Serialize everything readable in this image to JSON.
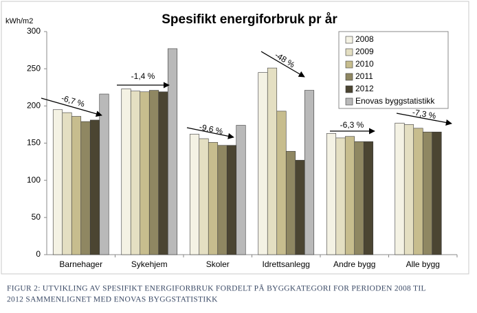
{
  "chart_data": {
    "type": "bar",
    "title": "Spesifikt energiforbruk pr år",
    "y_label": "kWh/m2",
    "categories": [
      "Barnehager",
      "Sykehjem",
      "Skoler",
      "Idrettsanlegg",
      "Andre bygg",
      "Alle bygg"
    ],
    "series": [
      {
        "name": "2008",
        "color": "#f4f2e4",
        "values": [
          195,
          223,
          162,
          245,
          163,
          177
        ]
      },
      {
        "name": "2009",
        "color": "#e4dfc2",
        "values": [
          191,
          220,
          156,
          251,
          157,
          175
        ]
      },
      {
        "name": "2010",
        "color": "#c7bd8e",
        "values": [
          186,
          219,
          151,
          193,
          159,
          170
        ]
      },
      {
        "name": "2011",
        "color": "#8f8762",
        "values": [
          179,
          221,
          147,
          139,
          152,
          165
        ]
      },
      {
        "name": "2012",
        "color": "#4b4532",
        "values": [
          181,
          219,
          147,
          127,
          152,
          165
        ]
      },
      {
        "name": "Enovas byggstatistikk",
        "color": "#b9b9b9",
        "values": [
          216,
          277,
          174,
          221,
          null,
          null
        ]
      }
    ],
    "annotations": [
      "-6,7 %",
      "-1,4 %",
      "-9,6 %",
      "-48 %",
      "-6,3 %",
      "-7,3 %"
    ],
    "ylim": [
      0,
      300
    ],
    "yticks": [
      0,
      50,
      100,
      150,
      200,
      250,
      300
    ],
    "grid": false,
    "legend": "top-right"
  },
  "caption": [
    "FIGUR 2: UTVIKLING AV SPESIFIKT ENERGIFORBRUK FORDELT PÅ BYGGKATEGORI FOR PERIODEN 2008 TIL",
    "2012 SAMMENLIGNET MED ENOVAS BYGGSTATISTIKK"
  ]
}
